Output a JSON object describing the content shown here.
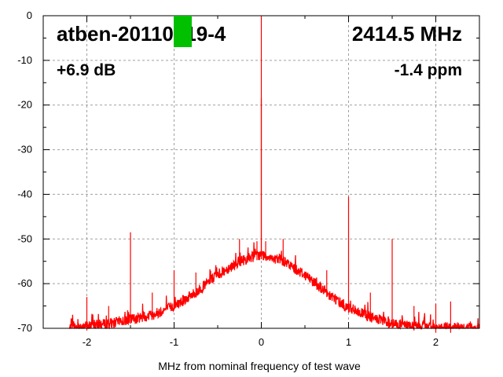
{
  "chart_data": {
    "type": "line",
    "title": "",
    "xlabel": "MHz from nominal frequency of test wave",
    "ylabel": "",
    "xlim": [
      -2.5,
      2.5
    ],
    "ylim": [
      -70,
      0
    ],
    "xticks": [
      -2,
      -1,
      0,
      1,
      2
    ],
    "yticks": [
      0,
      -10,
      -20,
      -30,
      -40,
      -50,
      -60,
      -70
    ],
    "grid": true,
    "series_color": "#ff0000",
    "annotations": {
      "device": "atben-20110219-4",
      "frequency": "2414.5 MHz",
      "gain": "+6.9 dB",
      "offset": "-1.4 ppm",
      "marker_color": "#00c000"
    },
    "noise_floor": [
      {
        "x": -2.2,
        "y": -70
      },
      {
        "x": -2.0,
        "y": -69.5
      },
      {
        "x": -1.75,
        "y": -69
      },
      {
        "x": -1.5,
        "y": -68
      },
      {
        "x": -1.25,
        "y": -67
      },
      {
        "x": -1.0,
        "y": -65
      },
      {
        "x": -0.75,
        "y": -62
      },
      {
        "x": -0.5,
        "y": -58
      },
      {
        "x": -0.25,
        "y": -55
      },
      {
        "x": -0.1,
        "y": -54
      },
      {
        "x": 0.0,
        "y": -53.5
      },
      {
        "x": 0.1,
        "y": -54
      },
      {
        "x": 0.25,
        "y": -55
      },
      {
        "x": 0.5,
        "y": -58
      },
      {
        "x": 0.75,
        "y": -62
      },
      {
        "x": 1.0,
        "y": -65.5
      },
      {
        "x": 1.25,
        "y": -67.5
      },
      {
        "x": 1.5,
        "y": -69
      },
      {
        "x": 1.75,
        "y": -69.5
      },
      {
        "x": 2.0,
        "y": -70
      },
      {
        "x": 2.5,
        "y": -70
      }
    ],
    "spurs": [
      {
        "x": 0.0,
        "y": 0
      },
      {
        "x": 0.0,
        "y": -18.5
      },
      {
        "x": -0.05,
        "y": -50.5
      },
      {
        "x": 0.05,
        "y": -50.5
      },
      {
        "x": -1.5,
        "y": -48.5
      },
      {
        "x": -1.0,
        "y": -57
      },
      {
        "x": -0.75,
        "y": -57.5
      },
      {
        "x": -0.25,
        "y": -50
      },
      {
        "x": 0.25,
        "y": -50
      },
      {
        "x": 0.75,
        "y": -57
      },
      {
        "x": 1.0,
        "y": -40.5
      },
      {
        "x": 1.5,
        "y": -50
      },
      {
        "x": -2.0,
        "y": -63
      },
      {
        "x": -1.75,
        "y": -65
      },
      {
        "x": -1.25,
        "y": -62
      },
      {
        "x": 1.25,
        "y": -62
      },
      {
        "x": 1.75,
        "y": -65
      },
      {
        "x": 2.0,
        "y": -64.5
      },
      {
        "x": 2.17,
        "y": -64
      }
    ]
  }
}
